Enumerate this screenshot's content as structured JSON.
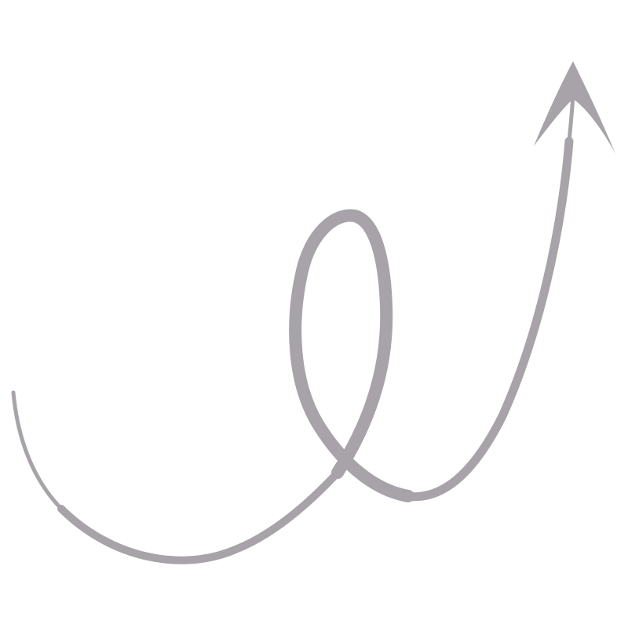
{
  "background_color": "#ffffff",
  "arrow": {
    "icon": "curly-loop-arrow-icon",
    "color": "#a7a3a9",
    "direction": "up-right"
  }
}
